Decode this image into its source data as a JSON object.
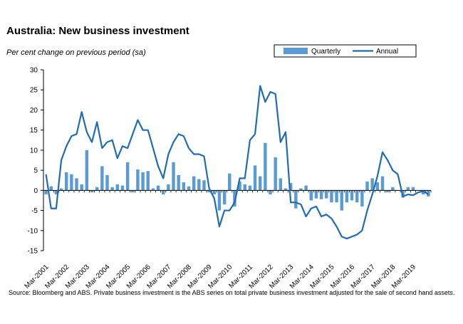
{
  "title": "Australia: New business investment",
  "subtitle": "Per cent change on previous period (sa)",
  "source": "Source: Bloomberg and ABS.  Private business investment is the ABS series on total private business investment adjusted for the sale of second hand assets.",
  "colors": {
    "bar": "#5b9bd5",
    "line": "#1f6cb4",
    "axis": "#000000",
    "legend_border": "#000000"
  },
  "chart_data": {
    "type": "bar",
    "title": "Australia: New business investment",
    "ylabel": "Per cent change on previous period (sa)",
    "ylim": [
      -15,
      30
    ],
    "yticks": [
      -15,
      -10,
      -5,
      0,
      5,
      10,
      15,
      20,
      25,
      30
    ],
    "grid": false,
    "legend_position": "top-right",
    "x_tick_labels": [
      "Mar-2001",
      "Mar-2002",
      "Mar-2003",
      "Mar-2004",
      "Mar-2005",
      "Mar-2006",
      "Mar-2007",
      "Mar-2008",
      "Mar-2009",
      "Mar-2010",
      "Mar-2011",
      "Mar-2012",
      "Mar-2013",
      "Mar-2014",
      "Mar-2015",
      "Mar-2016",
      "Mar-2017",
      "Mar-2018",
      "Mar-2019"
    ],
    "series": [
      {
        "name": "Quarterly",
        "type": "bar",
        "values": [
          -1.0,
          1.0,
          -1.0,
          0.5,
          4.5,
          4.0,
          3.0,
          1.5,
          10.0,
          -0.5,
          0.8,
          6.0,
          3.8,
          0.8,
          1.5,
          1.2,
          7.0,
          -0.5,
          5.2,
          4.5,
          4.8,
          0.5,
          1.2,
          -1.0,
          1.5,
          7.0,
          3.8,
          2.0,
          1.0,
          3.5,
          2.8,
          2.5,
          -0.5,
          -1.0,
          -5.0,
          -3.5,
          4.2,
          -4.0,
          2.2,
          1.5,
          1.2,
          6.2,
          3.5,
          11.8,
          -1.0,
          8.2,
          3.0,
          0.5,
          1.8,
          -4.5,
          0.5,
          1.2,
          -2.5,
          -2.0,
          -2.2,
          -2.0,
          -3.0,
          -3.0,
          -5.0,
          -3.0,
          -2.5,
          -3.0,
          -4.0,
          2.2,
          3.0,
          2.0,
          3.5,
          -0.5,
          0.8,
          0.0,
          -1.8,
          0.8,
          0.8,
          0.0,
          -1.0,
          -1.5
        ]
      },
      {
        "name": "Annual",
        "type": "line",
        "values": [
          4.0,
          -4.5,
          -4.5,
          7.5,
          11.0,
          13.5,
          14.0,
          19.5,
          14.5,
          12.0,
          17.0,
          10.5,
          12.0,
          12.5,
          8.0,
          11.0,
          10.5,
          14.0,
          17.5,
          15.0,
          15.0,
          10.5,
          6.0,
          3.0,
          9.0,
          12.0,
          14.0,
          13.5,
          10.5,
          9.0,
          9.0,
          8.5,
          0.5,
          -2.0,
          -9.0,
          -5.0,
          -5.0,
          -3.0,
          3.0,
          3.0,
          12.5,
          14.0,
          26.0,
          22.0,
          24.5,
          24.0,
          12.0,
          14.5,
          -3.0,
          -3.0,
          -3.5,
          -6.5,
          -4.5,
          -4.0,
          -6.5,
          -6.0,
          -7.0,
          -9.0,
          -11.5,
          -12.0,
          -11.5,
          -11.0,
          -10.0,
          -5.0,
          -1.0,
          3.5,
          9.5,
          7.5,
          5.0,
          4.0,
          -1.5,
          -1.0,
          -1.2,
          -0.5,
          -0.2,
          -1.0
        ]
      }
    ]
  }
}
